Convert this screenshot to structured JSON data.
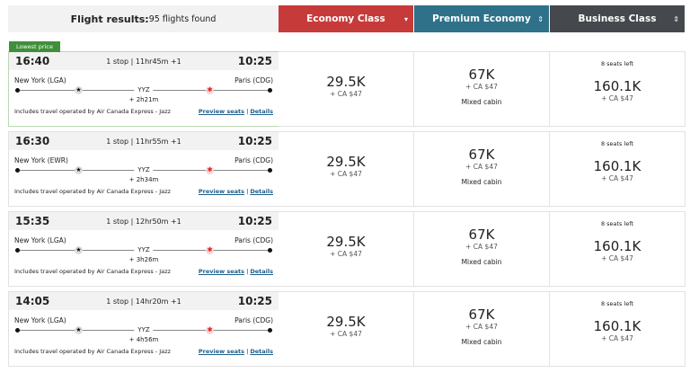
{
  "header": {
    "title": "Flight results:",
    "count": "95 flights found",
    "classes": [
      {
        "label": "Economy Class",
        "color": "#c73a3a",
        "sort": "▾"
      },
      {
        "label": "Premium Economy",
        "color": "#2f7189",
        "sort": "⇕"
      },
      {
        "label": "Business Class",
        "color": "#45484d",
        "sort": "⇕"
      }
    ]
  },
  "badge": "Lowest price",
  "flights": [
    {
      "dep": "16:40",
      "info": "1 stop | 11hr45m +1",
      "arr": "10:25",
      "from": "New York (LGA)",
      "to": "Paris (CDG)",
      "via": "YYZ",
      "layover": "+ 2h21m",
      "operated": "Includes travel operated by Air Canada Express - Jazz",
      "preview": "Preview seats",
      "details": "Details",
      "econ": {
        "pts": "29.5K",
        "tax": "+ CA $47"
      },
      "prem": {
        "pts": "67K",
        "tax": "+ CA $47",
        "note": "Mixed cabin"
      },
      "bus": {
        "seats": "8 seats left",
        "pts": "160.1K",
        "tax": "+ CA $47"
      }
    },
    {
      "dep": "16:30",
      "info": "1 stop | 11hr55m +1",
      "arr": "10:25",
      "from": "New York (EWR)",
      "to": "Paris (CDG)",
      "via": "YYZ",
      "layover": "+ 2h34m",
      "operated": "Includes travel operated by Air Canada Express - Jazz",
      "preview": "Preview seats",
      "details": "Details",
      "econ": {
        "pts": "29.5K",
        "tax": "+ CA $47"
      },
      "prem": {
        "pts": "67K",
        "tax": "+ CA $47",
        "note": "Mixed cabin"
      },
      "bus": {
        "seats": "8 seats left",
        "pts": "160.1K",
        "tax": "+ CA $47"
      }
    },
    {
      "dep": "15:35",
      "info": "1 stop | 12hr50m +1",
      "arr": "10:25",
      "from": "New York (LGA)",
      "to": "Paris (CDG)",
      "via": "YYZ",
      "layover": "+ 3h26m",
      "operated": "Includes travel operated by Air Canada Express - Jazz",
      "preview": "Preview seats",
      "details": "Details",
      "econ": {
        "pts": "29.5K",
        "tax": "+ CA $47"
      },
      "prem": {
        "pts": "67K",
        "tax": "+ CA $47",
        "note": "Mixed cabin"
      },
      "bus": {
        "seats": "8 seats left",
        "pts": "160.1K",
        "tax": "+ CA $47"
      }
    },
    {
      "dep": "14:05",
      "info": "1 stop | 14hr20m +1",
      "arr": "10:25",
      "from": "New York (LGA)",
      "to": "Paris (CDG)",
      "via": "YYZ",
      "layover": "+ 4h56m",
      "operated": "Includes travel operated by Air Canada Express - Jazz",
      "preview": "Preview seats",
      "details": "Details",
      "econ": {
        "pts": "29.5K",
        "tax": "+ CA $47"
      },
      "prem": {
        "pts": "67K",
        "tax": "+ CA $47",
        "note": "Mixed cabin"
      },
      "bus": {
        "seats": "8 seats left",
        "pts": "160.1K",
        "tax": "+ CA $47"
      }
    }
  ]
}
